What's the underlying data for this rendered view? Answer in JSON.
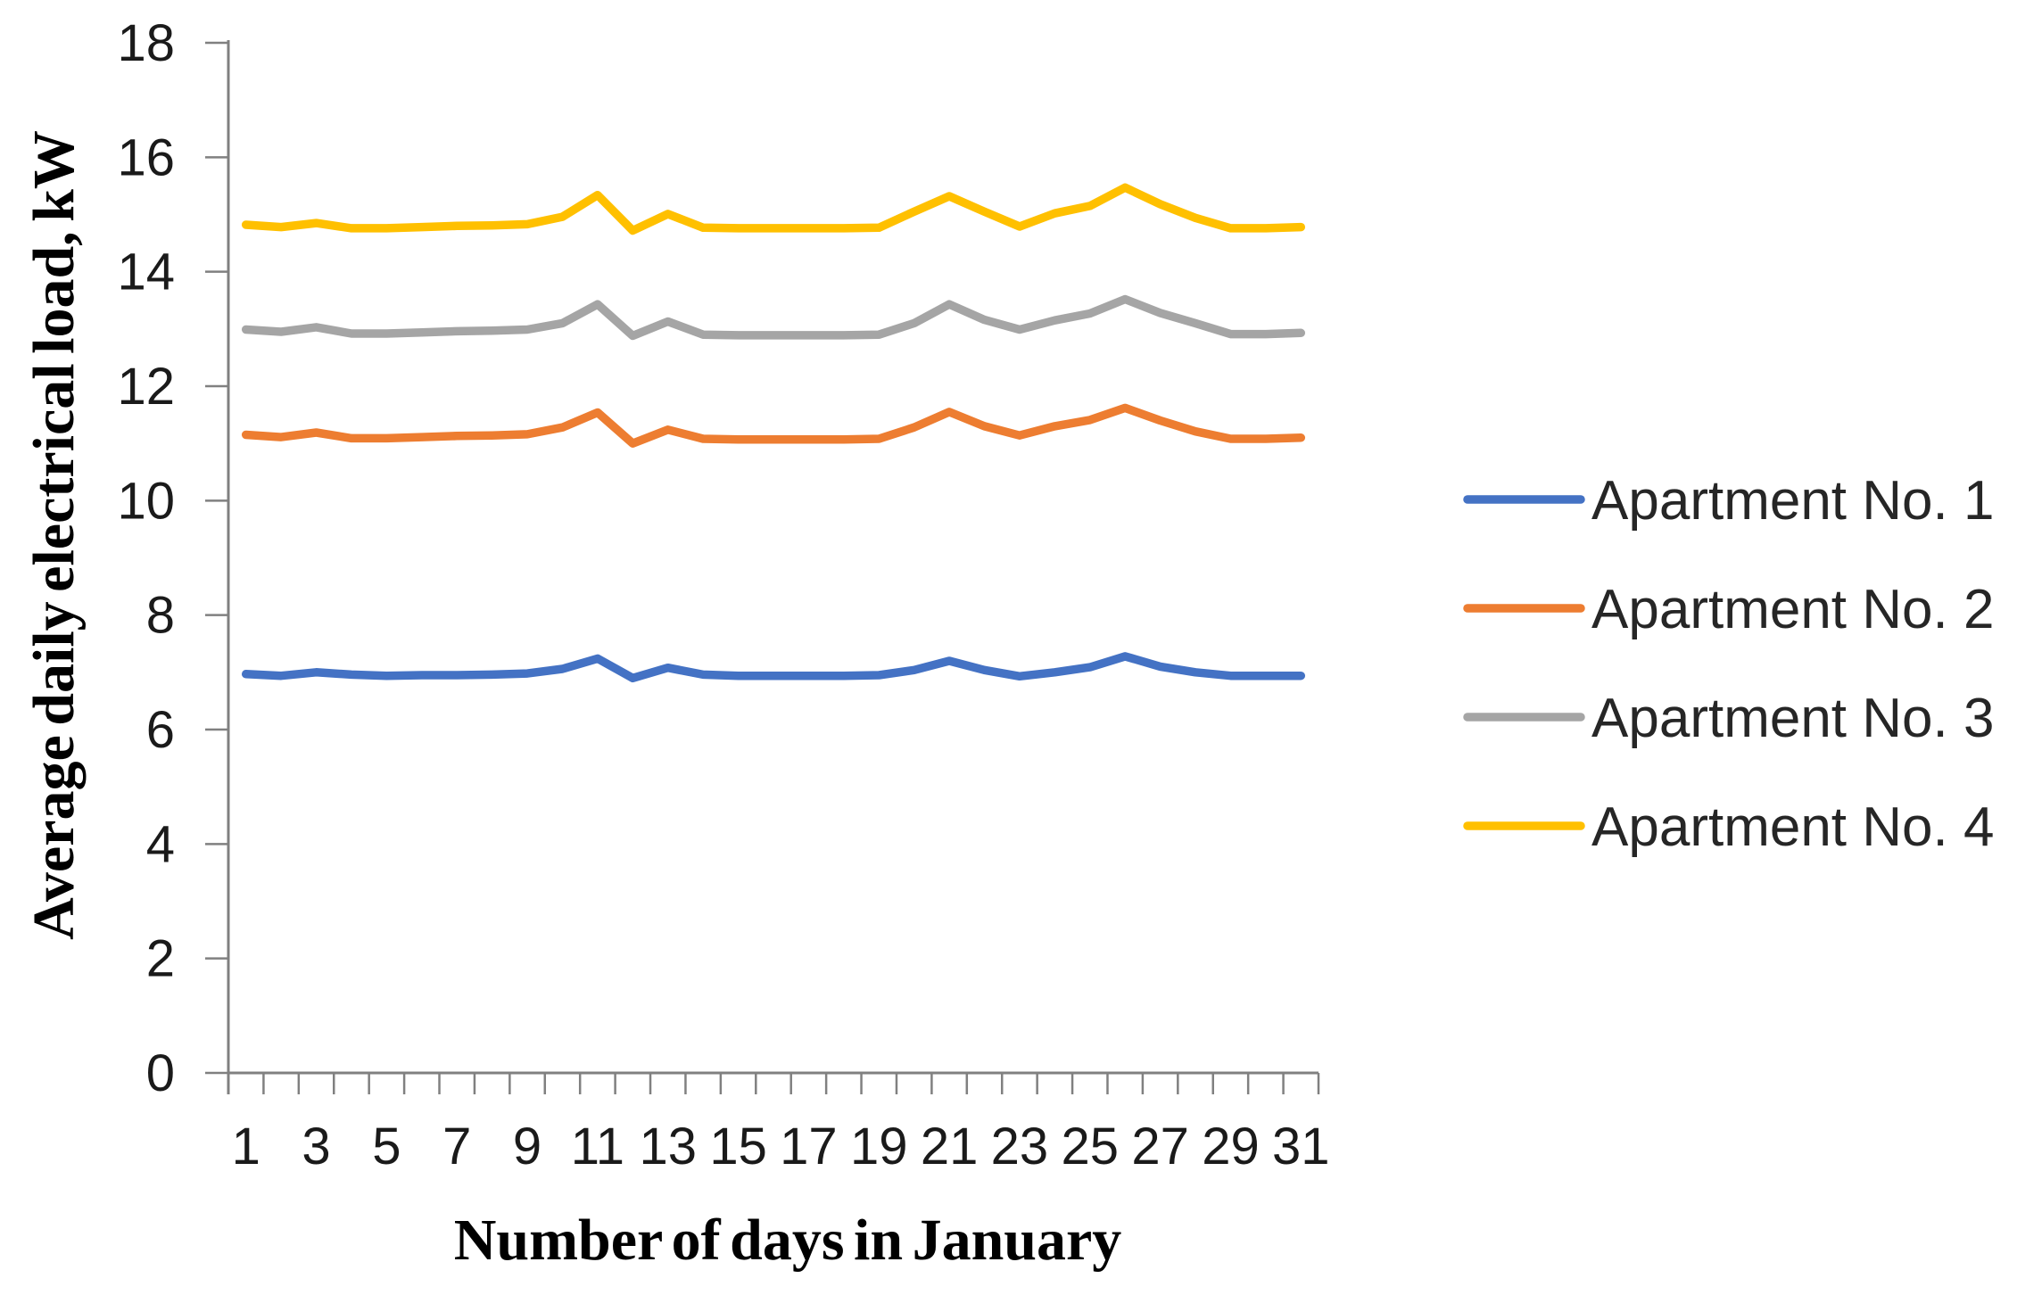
{
  "figure": {
    "background_color": "#ffffff",
    "axis_color": "#808080",
    "tick_label_color": "#1a1a1a",
    "legend_text_color": "#262626",
    "axis_title_color": "#000000"
  },
  "chart_data": {
    "type": "line",
    "title": "",
    "xlabel": "Number of days in January",
    "ylabel": "Average daily electrical load, kW",
    "x": [
      1,
      2,
      3,
      4,
      5,
      6,
      7,
      8,
      9,
      10,
      11,
      12,
      13,
      14,
      15,
      16,
      17,
      18,
      19,
      20,
      21,
      22,
      23,
      24,
      25,
      26,
      27,
      28,
      29,
      30,
      31
    ],
    "x_tick_labels": [
      "1",
      "3",
      "5",
      "7",
      "9",
      "11",
      "13",
      "15",
      "17",
      "19",
      "21",
      "23",
      "25",
      "27",
      "29",
      "31"
    ],
    "y_tick_labels": [
      "0",
      "2",
      "4",
      "6",
      "8",
      "10",
      "12",
      "14",
      "16",
      "18"
    ],
    "ylim": [
      0,
      18
    ],
    "ytick_step": 2,
    "grid": false,
    "legend_position": "right",
    "series": [
      {
        "name": "Apartment No. 1",
        "color": "#4472C4",
        "values": [
          6.97,
          6.94,
          7.0,
          6.96,
          6.94,
          6.95,
          6.95,
          6.96,
          6.98,
          7.06,
          7.24,
          6.9,
          7.08,
          6.96,
          6.94,
          6.94,
          6.94,
          6.94,
          6.95,
          7.04,
          7.2,
          7.04,
          6.93,
          7.0,
          7.09,
          7.28,
          7.1,
          7.0,
          6.94,
          6.94,
          6.94
        ]
      },
      {
        "name": "Apartment No. 2",
        "color": "#ED7D31",
        "values": [
          11.15,
          11.11,
          11.19,
          11.09,
          11.09,
          11.11,
          11.13,
          11.14,
          11.16,
          11.28,
          11.54,
          11.0,
          11.24,
          11.08,
          11.07,
          11.07,
          11.07,
          11.07,
          11.08,
          11.28,
          11.55,
          11.3,
          11.14,
          11.3,
          11.41,
          11.62,
          11.4,
          11.21,
          11.08,
          11.08,
          11.1
        ]
      },
      {
        "name": "Apartment No. 3",
        "color": "#A5A5A5",
        "values": [
          12.99,
          12.95,
          13.03,
          12.92,
          12.92,
          12.94,
          12.96,
          12.97,
          12.99,
          13.1,
          13.43,
          12.88,
          13.13,
          12.9,
          12.89,
          12.89,
          12.89,
          12.89,
          12.9,
          13.1,
          13.43,
          13.16,
          12.99,
          13.15,
          13.27,
          13.52,
          13.28,
          13.1,
          12.91,
          12.91,
          12.93
        ]
      },
      {
        "name": "Apartment No. 4",
        "color": "#FFC000",
        "values": [
          14.82,
          14.78,
          14.85,
          14.76,
          14.76,
          14.78,
          14.8,
          14.81,
          14.83,
          14.96,
          15.34,
          14.72,
          15.01,
          14.77,
          14.76,
          14.76,
          14.76,
          14.76,
          14.77,
          15.05,
          15.32,
          15.05,
          14.79,
          15.02,
          15.15,
          15.47,
          15.18,
          14.94,
          14.76,
          14.76,
          14.78
        ]
      }
    ]
  }
}
